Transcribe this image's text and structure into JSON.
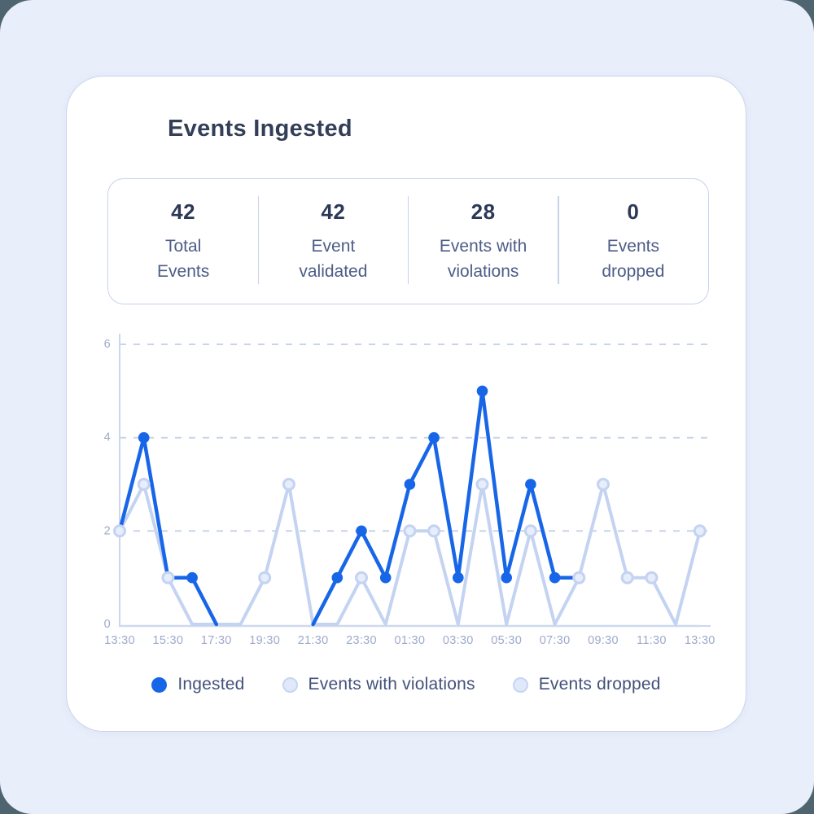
{
  "theme": {
    "outer_background": "#4e646f",
    "panel_background": "#e9eefb",
    "card_background": "#ffffff",
    "card_border": "#c9d4e9",
    "accent_blue": "#1866e8",
    "light_series_stroke": "#c3d3f1",
    "light_series_fill": "#e7edfb",
    "grid_color": "#c9d4e9",
    "axis_color": "#cdd7eb",
    "axis_label_color": "#9daaca",
    "title_color": "#333e57",
    "stat_value_color": "#2c3857",
    "stat_label_color": "#4d5d87",
    "legend_text_color": "#43527b"
  },
  "header": {
    "title": "Events Ingested"
  },
  "stats": [
    {
      "value": "42",
      "label_line1": "Total",
      "label_line2": "Events"
    },
    {
      "value": "42",
      "label_line1": "Event",
      "label_line2": "validated"
    },
    {
      "value": "28",
      "label_line1": "Events with",
      "label_line2": "violations"
    },
    {
      "value": "0",
      "label_line1": "Events",
      "label_line2": "dropped"
    }
  ],
  "chart_data": {
    "type": "line",
    "x_unit": "hourly points, tick label every 2 hours",
    "x_tick_labels": [
      "13:30",
      "15:30",
      "17:30",
      "19:30",
      "21:30",
      "23:30",
      "01:30",
      "03:30",
      "05:30",
      "07:30",
      "09:30",
      "11:30",
      "13:30"
    ],
    "x_points_per_tick": 2,
    "ylim": [
      0,
      6
    ],
    "yticks": [
      0,
      2,
      4,
      6
    ],
    "grid": "horizontal-dashed",
    "legend_position": "bottom",
    "series": [
      {
        "name": "Ingested",
        "color": "#1866e8",
        "marker": "filled-dot",
        "values": [
          2,
          4,
          1,
          1,
          0,
          null,
          null,
          null,
          0,
          1,
          2,
          1,
          3,
          4,
          1,
          5,
          1,
          3,
          1,
          1,
          null,
          null,
          null,
          null,
          null
        ]
      },
      {
        "name": "Events with violations",
        "color": "#c3d3f1",
        "marker": "outlined-circle",
        "values": [
          2,
          3,
          1,
          0,
          0,
          0,
          1,
          3,
          0,
          0,
          1,
          0,
          2,
          2,
          0,
          3,
          0,
          2,
          0,
          1,
          3,
          1,
          1,
          0,
          2
        ]
      },
      {
        "name": "Events dropped",
        "color": "#c3d3f1",
        "marker": "none",
        "values": [
          0,
          0,
          0,
          0,
          0,
          0,
          0,
          0,
          0,
          0,
          0,
          0,
          0,
          0,
          0,
          0,
          0,
          0,
          0,
          0,
          0,
          0,
          0,
          0,
          0
        ]
      }
    ]
  },
  "legend": {
    "items": [
      {
        "label": "Ingested",
        "swatch": "solid"
      },
      {
        "label": "Events with violations",
        "swatch": "outline"
      },
      {
        "label": "Events dropped",
        "swatch": "outline"
      }
    ]
  }
}
